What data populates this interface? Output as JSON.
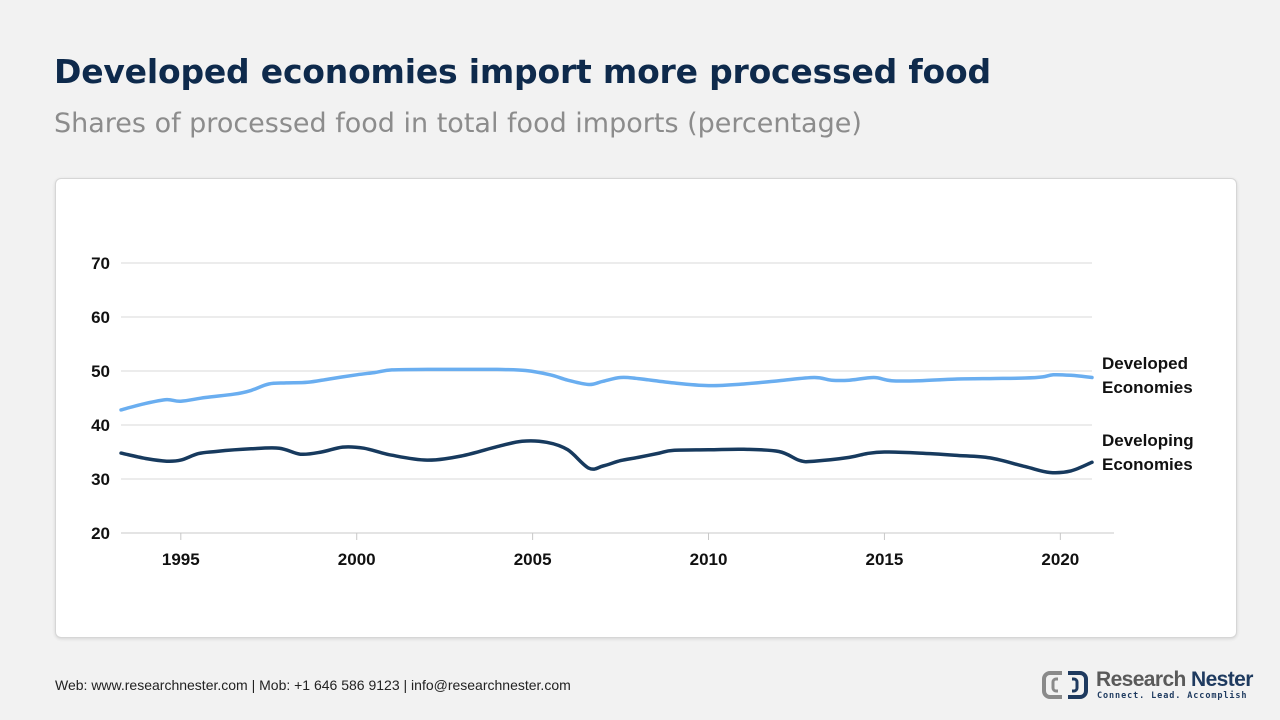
{
  "header": {
    "title": "Developed economies import more processed food",
    "subtitle": "Shares of processed food in total food imports (percentage)"
  },
  "colors": {
    "developed": "#6aaef0",
    "developing": "#173a5e",
    "title": "#0e2a4c"
  },
  "chart_data": {
    "type": "line",
    "title": "",
    "xlabel": "",
    "ylabel": "",
    "xlim": [
      1993.3,
      2020.9
    ],
    "ylim": [
      20,
      70
    ],
    "yticks": [
      "70",
      "60",
      "50",
      "40",
      "30",
      "20"
    ],
    "xticks": [
      "1995",
      "2000",
      "2005",
      "2010",
      "2015",
      "2020"
    ],
    "grid": "horizontal",
    "legend": "direct labels at right end of lines",
    "series": [
      {
        "name": "Developed Economies",
        "label_line1": "Developed",
        "label_line2": "Economies",
        "x": [
          1993.3,
          1994,
          1994.6,
          1995,
          1995.7,
          1996.5,
          1997,
          1997.5,
          1998,
          1998.6,
          1999.2,
          2000,
          2000.5,
          2001,
          2002,
          2003,
          2004,
          2004.8,
          2005.5,
          2006,
          2006.6,
          2007,
          2007.5,
          2008,
          2009,
          2010,
          2011,
          2012,
          2013,
          2013.5,
          2014,
          2014.7,
          2015.2,
          2016,
          2017,
          2018,
          2019,
          2019.5,
          2019.8,
          2020.3,
          2020.9
        ],
        "y": [
          42.8,
          44,
          44.7,
          44.4,
          45.1,
          45.7,
          46.4,
          47.6,
          47.8,
          47.9,
          48.5,
          49.3,
          49.7,
          50.2,
          50.3,
          50.3,
          50.3,
          50.1,
          49.3,
          48.3,
          47.5,
          48.1,
          48.8,
          48.6,
          47.8,
          47.3,
          47.6,
          48.2,
          48.8,
          48.3,
          48.3,
          48.8,
          48.2,
          48.2,
          48.5,
          48.6,
          48.7,
          48.9,
          49.3,
          49.2,
          48.8
        ]
      },
      {
        "name": "Developing Economies",
        "label_line1": "Developing",
        "label_line2": "Economies",
        "x": [
          1993.3,
          1994,
          1994.6,
          1995,
          1995.5,
          1996,
          1997,
          1997.8,
          1998.4,
          1999,
          1999.6,
          2000.2,
          2001,
          2002,
          2003,
          2004,
          2004.7,
          2005.4,
          2006,
          2006.6,
          2007,
          2007.5,
          2008,
          2008.6,
          2009,
          2010,
          2011,
          2012,
          2012.6,
          2013,
          2014,
          2014.5,
          2015,
          2016,
          2017,
          2018,
          2019,
          2019.7,
          2020.3,
          2020.9
        ],
        "y": [
          34.8,
          33.8,
          33.3,
          33.5,
          34.7,
          35.1,
          35.6,
          35.7,
          34.6,
          35,
          35.9,
          35.7,
          34.4,
          33.5,
          34.3,
          36,
          37,
          36.8,
          35.4,
          32,
          32.4,
          33.4,
          34,
          34.8,
          35.3,
          35.4,
          35.5,
          35.1,
          33.4,
          33.3,
          34,
          34.7,
          35,
          34.8,
          34.4,
          33.9,
          32.3,
          31.2,
          31.5,
          33.1
        ]
      }
    ]
  },
  "footer": {
    "contact": "Web: www.researchnester.com  | Mob: +1 646 586 9123 | info@researchnester.com"
  },
  "logo": {
    "name_part1": "Research ",
    "name_part2": "Nester",
    "tagline": "Connect. Lead. Accomplish"
  }
}
